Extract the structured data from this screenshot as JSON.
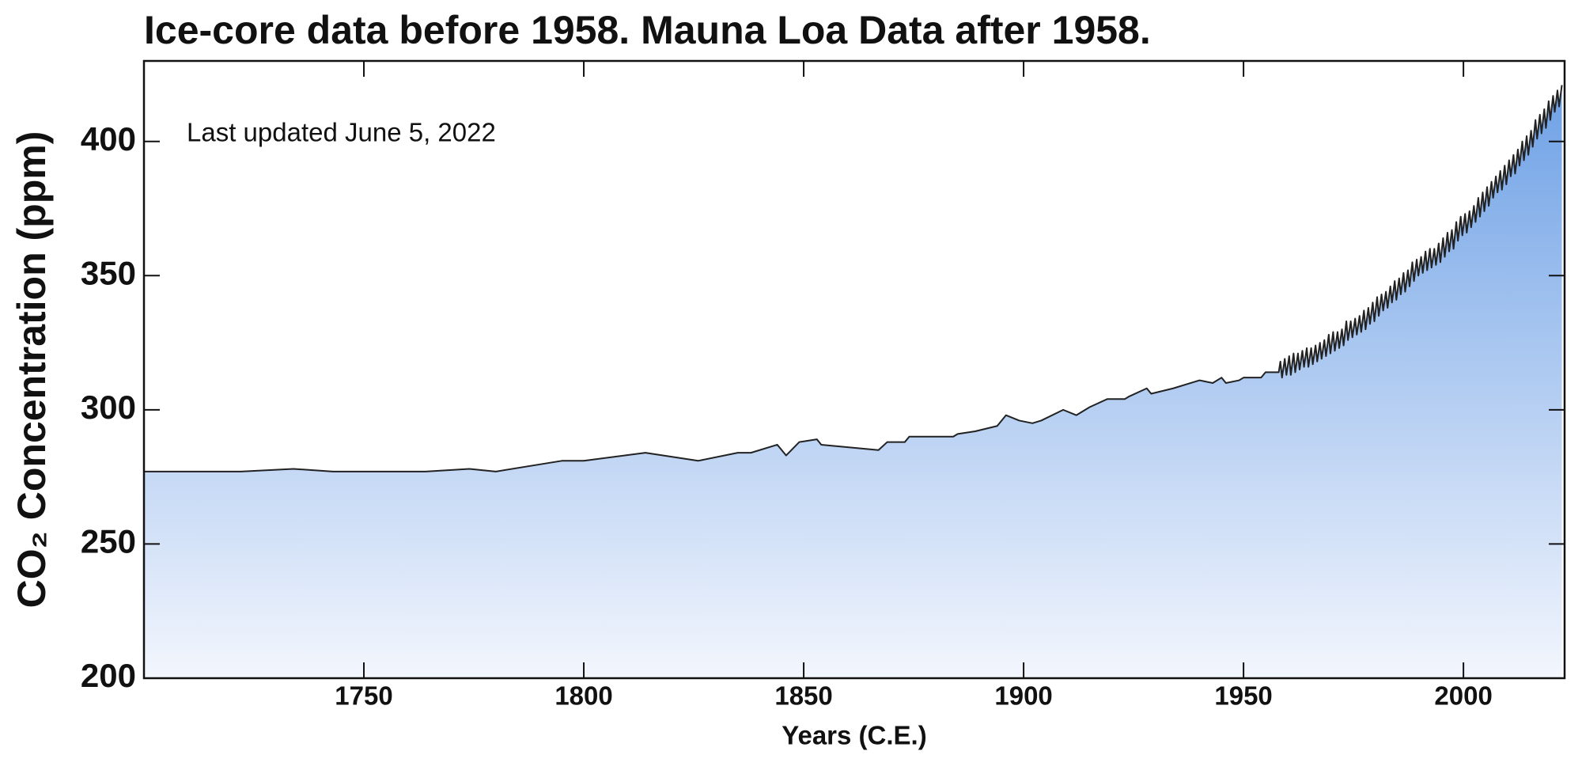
{
  "chart_data": {
    "type": "area",
    "title": "Ice-core data before 1958. Mauna Loa Data after 1958.",
    "annotation": "Last updated June 5, 2022",
    "x_label": "Years (C.E.)",
    "y_label": "CO₂ Concentration (ppm)",
    "xlim": [
      1700,
      2023
    ],
    "ylim": [
      200,
      430
    ],
    "xticks": [
      1750,
      1800,
      1850,
      1900,
      1950,
      2000
    ],
    "yticks": [
      200,
      250,
      300,
      350,
      400
    ],
    "line_color": "#222222",
    "fill_top": "#6ea1e6",
    "fill_bottom": "#f3f6fd",
    "x": [
      1700,
      1722,
      1734,
      1743,
      1764,
      1774,
      1780,
      1795,
      1800,
      1814,
      1826,
      1835,
      1838,
      1844,
      1846,
      1849,
      1853,
      1854,
      1867,
      1869,
      1873,
      1874,
      1884,
      1885,
      1889,
      1894,
      1896,
      1899,
      1902,
      1904,
      1909,
      1912,
      1915,
      1919,
      1923,
      1924,
      1928,
      1929,
      1934,
      1938,
      1940,
      1943,
      1945,
      1946,
      1949,
      1950,
      1954,
      1955,
      1958,
      1958.38,
      1958.75,
      1959.38,
      1959.75,
      1960.38,
      1960.75,
      1961.38,
      1961.75,
      1962.38,
      1962.75,
      1963.38,
      1963.75,
      1964.38,
      1964.75,
      1965.38,
      1965.75,
      1966.38,
      1966.75,
      1967.38,
      1967.75,
      1968.38,
      1968.75,
      1969.38,
      1969.75,
      1970.38,
      1970.75,
      1971.38,
      1971.75,
      1972.38,
      1972.75,
      1973.38,
      1973.75,
      1974.38,
      1974.75,
      1975.38,
      1975.75,
      1976.38,
      1976.75,
      1977.38,
      1977.75,
      1978.38,
      1978.75,
      1979.38,
      1979.75,
      1980.38,
      1980.75,
      1981.38,
      1981.75,
      1982.38,
      1982.75,
      1983.38,
      1983.75,
      1984.38,
      1984.75,
      1985.38,
      1985.75,
      1986.38,
      1986.75,
      1987.38,
      1987.75,
      1988.38,
      1988.75,
      1989.38,
      1989.75,
      1990.38,
      1990.75,
      1991.38,
      1991.75,
      1992.38,
      1992.75,
      1993.38,
      1993.75,
      1994.38,
      1994.75,
      1995.38,
      1995.75,
      1996.38,
      1996.75,
      1997.38,
      1997.75,
      1998.38,
      1998.75,
      1999.38,
      1999.75,
      2000.38,
      2000.75,
      2001.38,
      2001.75,
      2002.38,
      2002.75,
      2003.38,
      2003.75,
      2004.38,
      2004.75,
      2005.38,
      2005.75,
      2006.38,
      2006.75,
      2007.38,
      2007.75,
      2008.38,
      2008.75,
      2009.38,
      2009.75,
      2010.38,
      2010.75,
      2011.38,
      2011.75,
      2012.38,
      2012.75,
      2013.38,
      2013.75,
      2014.38,
      2014.75,
      2015.38,
      2015.75,
      2016.38,
      2016.75,
      2017.38,
      2017.75,
      2018.38,
      2018.75,
      2019.38,
      2019.75,
      2020.38,
      2020.75,
      2021.38,
      2021.75,
      2022.38
    ],
    "values": [
      277,
      277,
      278,
      277,
      277,
      278,
      277,
      281,
      281,
      284,
      281,
      284,
      284,
      287,
      283,
      288,
      289,
      287,
      285,
      288,
      288,
      290,
      290,
      291,
      292,
      294,
      298,
      296,
      295,
      296,
      300,
      298,
      301,
      304,
      304,
      305,
      308,
      306,
      308,
      310,
      311,
      310,
      312,
      310,
      311,
      312,
      312,
      314,
      314,
      318,
      312,
      319,
      313,
      320,
      313,
      321,
      314,
      321,
      315,
      322,
      316,
      323,
      316,
      323,
      317,
      324,
      318,
      325,
      319,
      326,
      320,
      328,
      321,
      329,
      322,
      329,
      323,
      330,
      324,
      333,
      326,
      333,
      327,
      334,
      328,
      335,
      329,
      337,
      330,
      338,
      332,
      340,
      333,
      342,
      335,
      343,
      337,
      344,
      338,
      346,
      340,
      348,
      341,
      349,
      343,
      351,
      344,
      352,
      346,
      355,
      348,
      356,
      350,
      357,
      351,
      359,
      352,
      360,
      353,
      360,
      354,
      362,
      355,
      364,
      357,
      366,
      359,
      367,
      360,
      370,
      363,
      372,
      365,
      373,
      366,
      374,
      368,
      376,
      370,
      379,
      372,
      381,
      374,
      383,
      376,
      385,
      379,
      387,
      381,
      389,
      382,
      391,
      384,
      393,
      387,
      395,
      388,
      397,
      391,
      400,
      393,
      402,
      395,
      404,
      398,
      408,
      401,
      410,
      403,
      412,
      405,
      415,
      408,
      417,
      411,
      419,
      413,
      421
    ]
  }
}
